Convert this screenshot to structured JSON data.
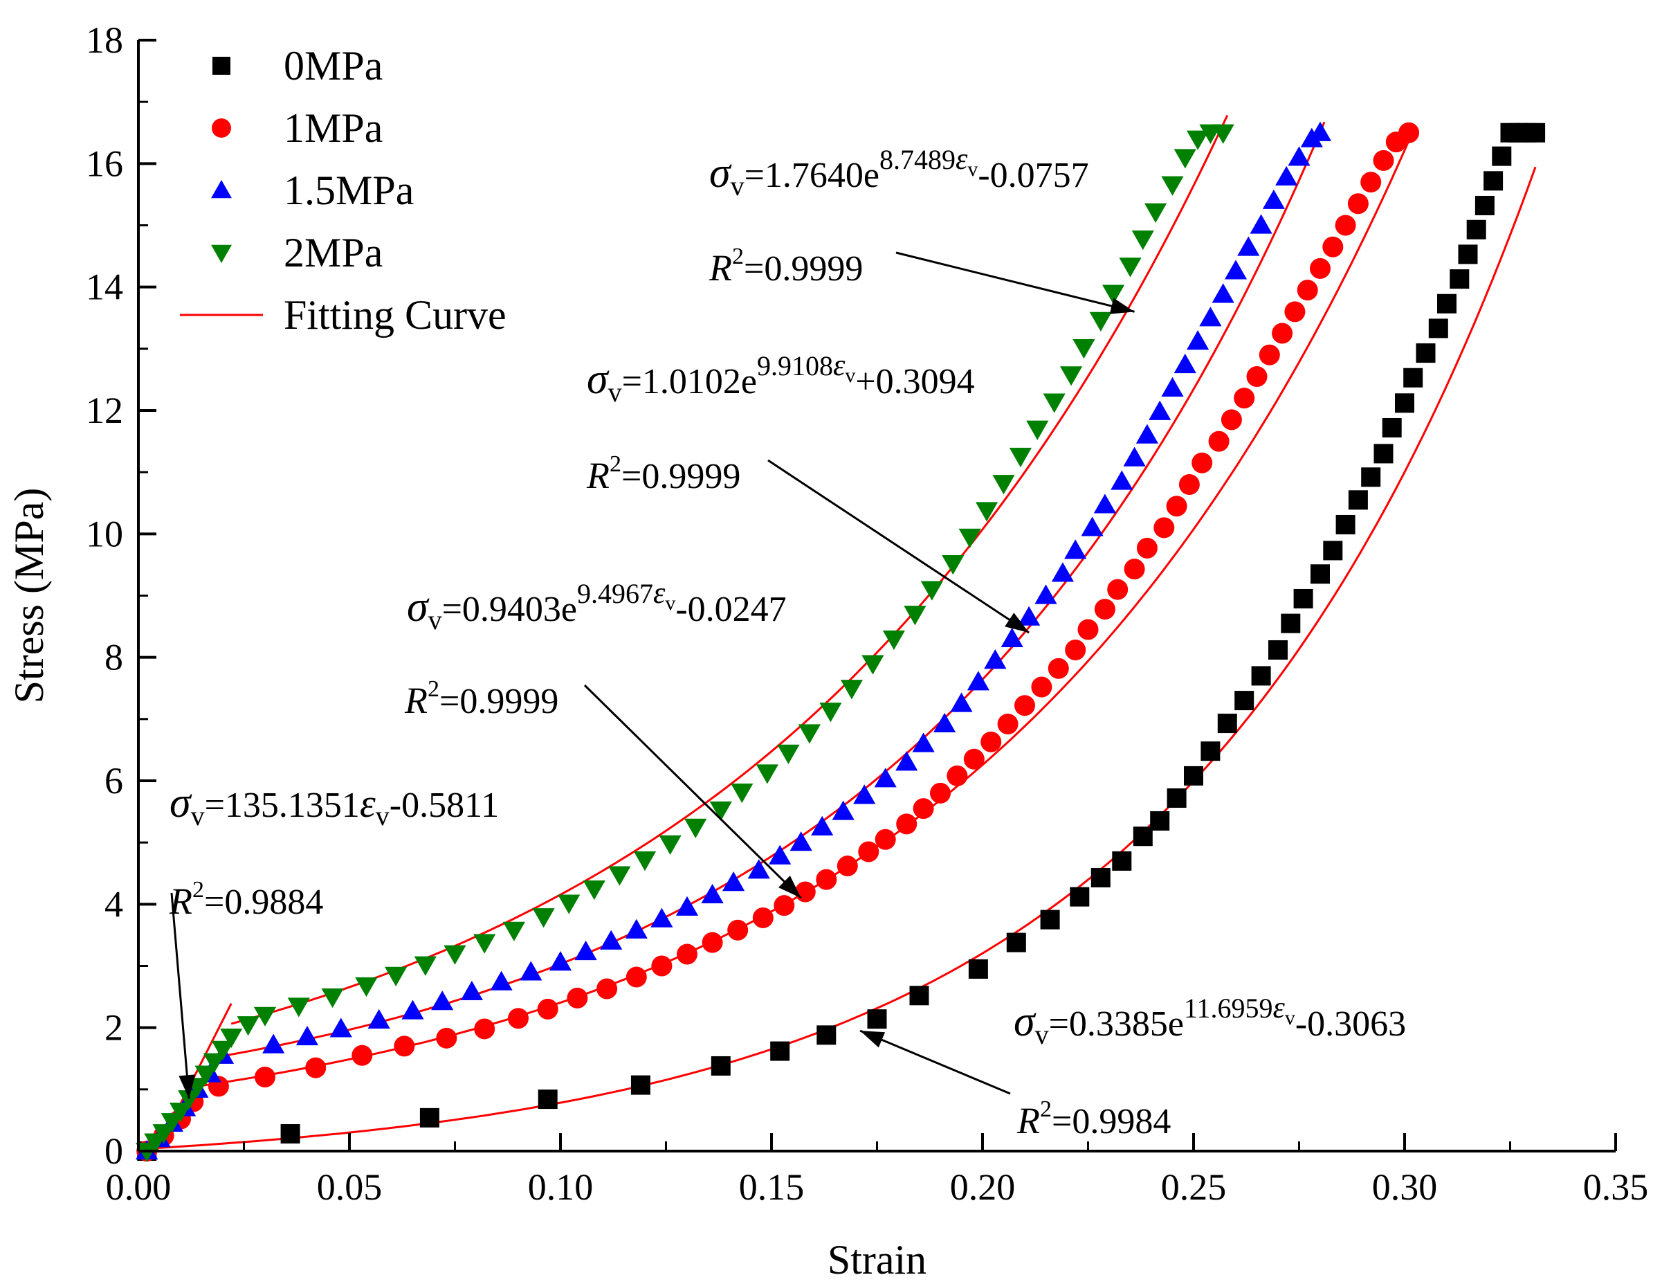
{
  "chart_data": {
    "type": "scatter",
    "xlabel": "Strain",
    "ylabel": "Stress (MPa)",
    "xlim": [
      0,
      0.35
    ],
    "ylim": [
      0,
      18
    ],
    "xticks": [
      "0.00",
      "0.05",
      "0.10",
      "0.15",
      "0.20",
      "0.25",
      "0.30",
      "0.35"
    ],
    "yticks": [
      "0",
      "2",
      "4",
      "6",
      "8",
      "10",
      "12",
      "14",
      "16",
      "18"
    ],
    "grid": false,
    "legend_position": "top-left",
    "series": [
      {
        "name": "0MPa",
        "marker": "square",
        "color": "#000000",
        "x": [
          0.002,
          0.036,
          0.069,
          0.097,
          0.119,
          0.138,
          0.152,
          0.163,
          0.175,
          0.185,
          0.199,
          0.208,
          0.216,
          0.223,
          0.228,
          0.233,
          0.238,
          0.242,
          0.246,
          0.25,
          0.254,
          0.258,
          0.262,
          0.266,
          0.27,
          0.273,
          0.276,
          0.28,
          0.283,
          0.286,
          0.289,
          0.292,
          0.295,
          0.297,
          0.3,
          0.302,
          0.305,
          0.308,
          0.31,
          0.313,
          0.315,
          0.317,
          0.319,
          0.321,
          0.323,
          0.325,
          0.327,
          0.329,
          0.331
        ],
        "y": [
          0.0,
          0.28,
          0.54,
          0.84,
          1.07,
          1.38,
          1.62,
          1.88,
          2.14,
          2.52,
          2.95,
          3.38,
          3.75,
          4.12,
          4.43,
          4.7,
          5.1,
          5.35,
          5.72,
          6.08,
          6.48,
          6.93,
          7.3,
          7.7,
          8.12,
          8.55,
          8.95,
          9.35,
          9.73,
          10.15,
          10.55,
          10.92,
          11.3,
          11.72,
          12.12,
          12.53,
          12.93,
          13.33,
          13.73,
          14.13,
          14.53,
          14.93,
          15.32,
          15.72,
          16.12,
          16.5,
          16.5,
          16.5,
          16.5
        ]
      },
      {
        "name": "1MPa",
        "marker": "circle",
        "color": "#ff0000",
        "x": [
          0.002,
          0.006,
          0.01,
          0.013,
          0.019,
          0.03,
          0.042,
          0.053,
          0.063,
          0.073,
          0.082,
          0.09,
          0.097,
          0.104,
          0.111,
          0.118,
          0.124,
          0.13,
          0.136,
          0.142,
          0.148,
          0.153,
          0.158,
          0.163,
          0.168,
          0.173,
          0.177,
          0.182,
          0.186,
          0.19,
          0.194,
          0.198,
          0.202,
          0.206,
          0.21,
          0.214,
          0.218,
          0.222,
          0.225,
          0.229,
          0.232,
          0.236,
          0.239,
          0.243,
          0.246,
          0.249,
          0.252,
          0.256,
          0.259,
          0.262,
          0.265,
          0.268,
          0.271,
          0.274,
          0.277,
          0.28,
          0.283,
          0.286,
          0.289,
          0.292,
          0.295,
          0.298,
          0.301
        ],
        "y": [
          0.0,
          0.25,
          0.52,
          0.8,
          1.05,
          1.2,
          1.35,
          1.55,
          1.7,
          1.83,
          1.98,
          2.15,
          2.3,
          2.48,
          2.63,
          2.82,
          3.0,
          3.19,
          3.38,
          3.58,
          3.78,
          3.98,
          4.2,
          4.4,
          4.62,
          4.85,
          5.05,
          5.3,
          5.55,
          5.8,
          6.08,
          6.35,
          6.63,
          6.92,
          7.22,
          7.52,
          7.82,
          8.12,
          8.45,
          8.78,
          9.1,
          9.43,
          9.77,
          10.1,
          10.45,
          10.8,
          11.15,
          11.5,
          11.85,
          12.2,
          12.55,
          12.9,
          13.25,
          13.6,
          13.95,
          14.3,
          14.65,
          15.0,
          15.35,
          15.7,
          16.05,
          16.35,
          16.5
        ]
      },
      {
        "name": "1.5MPa",
        "marker": "triangle-up",
        "color": "#0000ff",
        "x": [
          0.002,
          0.005,
          0.008,
          0.011,
          0.014,
          0.017,
          0.02,
          0.032,
          0.04,
          0.048,
          0.057,
          0.065,
          0.072,
          0.079,
          0.086,
          0.093,
          0.1,
          0.106,
          0.112,
          0.118,
          0.124,
          0.13,
          0.136,
          0.141,
          0.147,
          0.152,
          0.157,
          0.162,
          0.167,
          0.172,
          0.177,
          0.182,
          0.186,
          0.191,
          0.195,
          0.199,
          0.203,
          0.207,
          0.211,
          0.215,
          0.219,
          0.222,
          0.226,
          0.229,
          0.233,
          0.236,
          0.239,
          0.242,
          0.245,
          0.248,
          0.251,
          0.254,
          0.257,
          0.26,
          0.263,
          0.266,
          0.269,
          0.272,
          0.275,
          0.278,
          0.28
        ],
        "y": [
          0.0,
          0.2,
          0.45,
          0.7,
          1.0,
          1.25,
          1.55,
          1.72,
          1.85,
          1.98,
          2.12,
          2.27,
          2.42,
          2.58,
          2.74,
          2.9,
          3.06,
          3.23,
          3.4,
          3.58,
          3.76,
          3.95,
          4.15,
          4.35,
          4.55,
          4.78,
          5.0,
          5.25,
          5.5,
          5.76,
          6.03,
          6.3,
          6.6,
          6.92,
          7.25,
          7.6,
          7.95,
          8.3,
          8.65,
          9.0,
          9.36,
          9.73,
          10.1,
          10.47,
          10.85,
          11.23,
          11.6,
          11.98,
          12.36,
          12.74,
          13.12,
          13.5,
          13.88,
          14.26,
          14.64,
          15.0,
          15.4,
          15.78,
          16.1,
          16.4,
          16.5
        ]
      },
      {
        "name": "2MPa",
        "marker": "triangle-down",
        "color": "#008000",
        "x": [
          0.002,
          0.004,
          0.006,
          0.008,
          0.01,
          0.012,
          0.014,
          0.016,
          0.018,
          0.02,
          0.022,
          0.026,
          0.03,
          0.038,
          0.046,
          0.054,
          0.061,
          0.068,
          0.075,
          0.082,
          0.089,
          0.096,
          0.102,
          0.108,
          0.114,
          0.12,
          0.126,
          0.132,
          0.138,
          0.143,
          0.149,
          0.154,
          0.159,
          0.164,
          0.169,
          0.174,
          0.179,
          0.184,
          0.188,
          0.193,
          0.197,
          0.201,
          0.205,
          0.209,
          0.213,
          0.217,
          0.221,
          0.224,
          0.228,
          0.231,
          0.235,
          0.238,
          0.241,
          0.245,
          0.248,
          0.251,
          0.254,
          0.257
        ],
        "y": [
          0.0,
          0.15,
          0.3,
          0.48,
          0.65,
          0.85,
          1.05,
          1.25,
          1.45,
          1.65,
          1.85,
          2.05,
          2.2,
          2.35,
          2.5,
          2.68,
          2.85,
          3.02,
          3.2,
          3.38,
          3.58,
          3.8,
          4.02,
          4.25,
          4.48,
          4.72,
          4.98,
          5.25,
          5.53,
          5.82,
          6.13,
          6.45,
          6.78,
          7.13,
          7.5,
          7.9,
          8.3,
          8.7,
          9.1,
          9.52,
          9.95,
          10.38,
          10.82,
          11.26,
          11.7,
          12.14,
          12.58,
          13.02,
          13.46,
          13.9,
          14.34,
          14.78,
          15.22,
          15.66,
          16.1,
          16.4,
          16.5,
          16.5
        ]
      }
    ],
    "fits": [
      {
        "name": "Fitting Curve",
        "series": "0MPa",
        "kind": "exp",
        "a": 0.3385,
        "b": 11.6959,
        "c": -0.3063,
        "x_from": 0.0,
        "x_to": 0.331
      },
      {
        "name": "Fitting Curve",
        "series": "1MPa",
        "kind": "exp",
        "a": 0.9403,
        "b": 9.4967,
        "c": -0.0247,
        "x_from": 0.014,
        "x_to": 0.302
      },
      {
        "name": "Fitting Curve",
        "series": "1.5MPa",
        "kind": "exp",
        "a": 1.0102,
        "b": 9.9108,
        "c": 0.3094,
        "x_from": 0.02,
        "x_to": 0.281
      },
      {
        "name": "Fitting Curve",
        "series": "2MPa",
        "kind": "exp",
        "a": 1.764,
        "b": 8.7489,
        "c": -0.0757,
        "x_from": 0.022,
        "x_to": 0.258
      },
      {
        "name": "Fitting Curve",
        "series": "linear",
        "kind": "linear",
        "a": 135.1351,
        "b": -0.5811,
        "x_from": 0.0043,
        "x_to": 0.022
      }
    ],
    "legend": [
      {
        "label": "0MPa",
        "marker": "square",
        "color": "#000000"
      },
      {
        "label": "1MPa",
        "marker": "circle",
        "color": "#ff0000"
      },
      {
        "label": "1.5MPa",
        "marker": "triangle-up",
        "color": "#0000ff"
      },
      {
        "label": "2MPa",
        "marker": "triangle-down",
        "color": "#008000"
      },
      {
        "label": "Fitting Curve",
        "marker": "line",
        "color": "#ff0000"
      }
    ],
    "annotations": [
      {
        "id": "eq-2mpa",
        "sigma": "σ",
        "sub": "v",
        "coef": "=1.7640e",
        "exp": "8.7489",
        "eps": "ε",
        "tail": "-0.0757",
        "r2_label": "R",
        "r2_sup": "2",
        "r2_value": "=0.9999",
        "target": [
          0.236,
          13.6
        ]
      },
      {
        "id": "eq-15mpa",
        "sigma": "σ",
        "sub": "v",
        "coef": "=1.0102e",
        "exp": "9.9108",
        "eps": "ε",
        "tail": "+0.3094",
        "r2_label": "R",
        "r2_sup": "2",
        "r2_value": "=0.9999",
        "target": [
          0.211,
          8.4
        ]
      },
      {
        "id": "eq-1mpa",
        "sigma": "σ",
        "sub": "v",
        "coef": "=0.9403e",
        "exp": "9.4967",
        "eps": "ε",
        "tail": "-0.0247",
        "r2_label": "R",
        "r2_sup": "2",
        "r2_value": "=0.9999",
        "target": [
          0.157,
          4.1
        ]
      },
      {
        "id": "eq-0mpa",
        "sigma": "σ",
        "sub": "v",
        "coef": "=0.3385e",
        "exp": "11.6959",
        "eps": "ε",
        "tail": "-0.3063",
        "r2_label": "R",
        "r2_sup": "2",
        "r2_value": "=0.9984",
        "target": [
          0.171,
          1.95
        ]
      },
      {
        "id": "eq-linear",
        "sigma": "σ",
        "sub": "v",
        "coef": "=135.1351",
        "exp": "",
        "eps": "ε",
        "tail": "-0.5811",
        "r2_label": "R",
        "r2_sup": "2",
        "r2_value": "=0.9884",
        "target": [
          0.012,
          0.85
        ]
      }
    ]
  }
}
